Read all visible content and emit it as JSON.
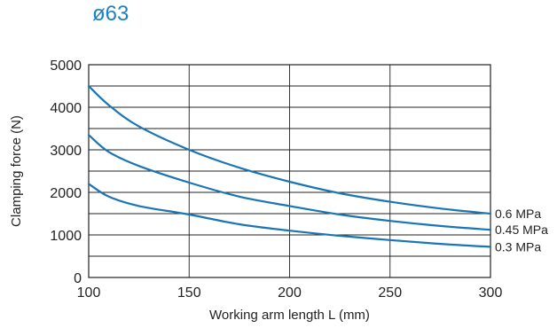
{
  "chart_data": {
    "type": "line",
    "title": "ø63",
    "xlabel": "Working arm length L (mm)",
    "ylabel": "Clamping force (N)",
    "xlim": [
      100,
      300
    ],
    "ylim": [
      0,
      5000
    ],
    "xticks": [
      100,
      150,
      200,
      250,
      300
    ],
    "yticks": [
      0,
      1000,
      2000,
      3000,
      4000,
      5000
    ],
    "grid": true,
    "legend": "curve labels at right end",
    "series": [
      {
        "name": "0.6 MPa",
        "x": [
          100,
          110,
          125,
          150,
          175,
          200,
          225,
          250,
          275,
          300
        ],
        "y": [
          4500,
          4050,
          3550,
          3000,
          2580,
          2250,
          1980,
          1780,
          1620,
          1500
        ]
      },
      {
        "name": "0.45 MPa",
        "x": [
          100,
          110,
          125,
          150,
          175,
          200,
          225,
          250,
          275,
          300
        ],
        "y": [
          3350,
          2950,
          2620,
          2230,
          1900,
          1680,
          1480,
          1330,
          1210,
          1120
        ]
      },
      {
        "name": "0.3 MPa",
        "x": [
          100,
          110,
          125,
          150,
          175,
          200,
          225,
          250,
          275,
          300
        ],
        "y": [
          2200,
          1900,
          1680,
          1480,
          1250,
          1100,
          980,
          880,
          790,
          720
        ]
      }
    ],
    "colors": {
      "line": "#1a75b5",
      "title": "#1a82c4",
      "grid": "#222222"
    }
  }
}
